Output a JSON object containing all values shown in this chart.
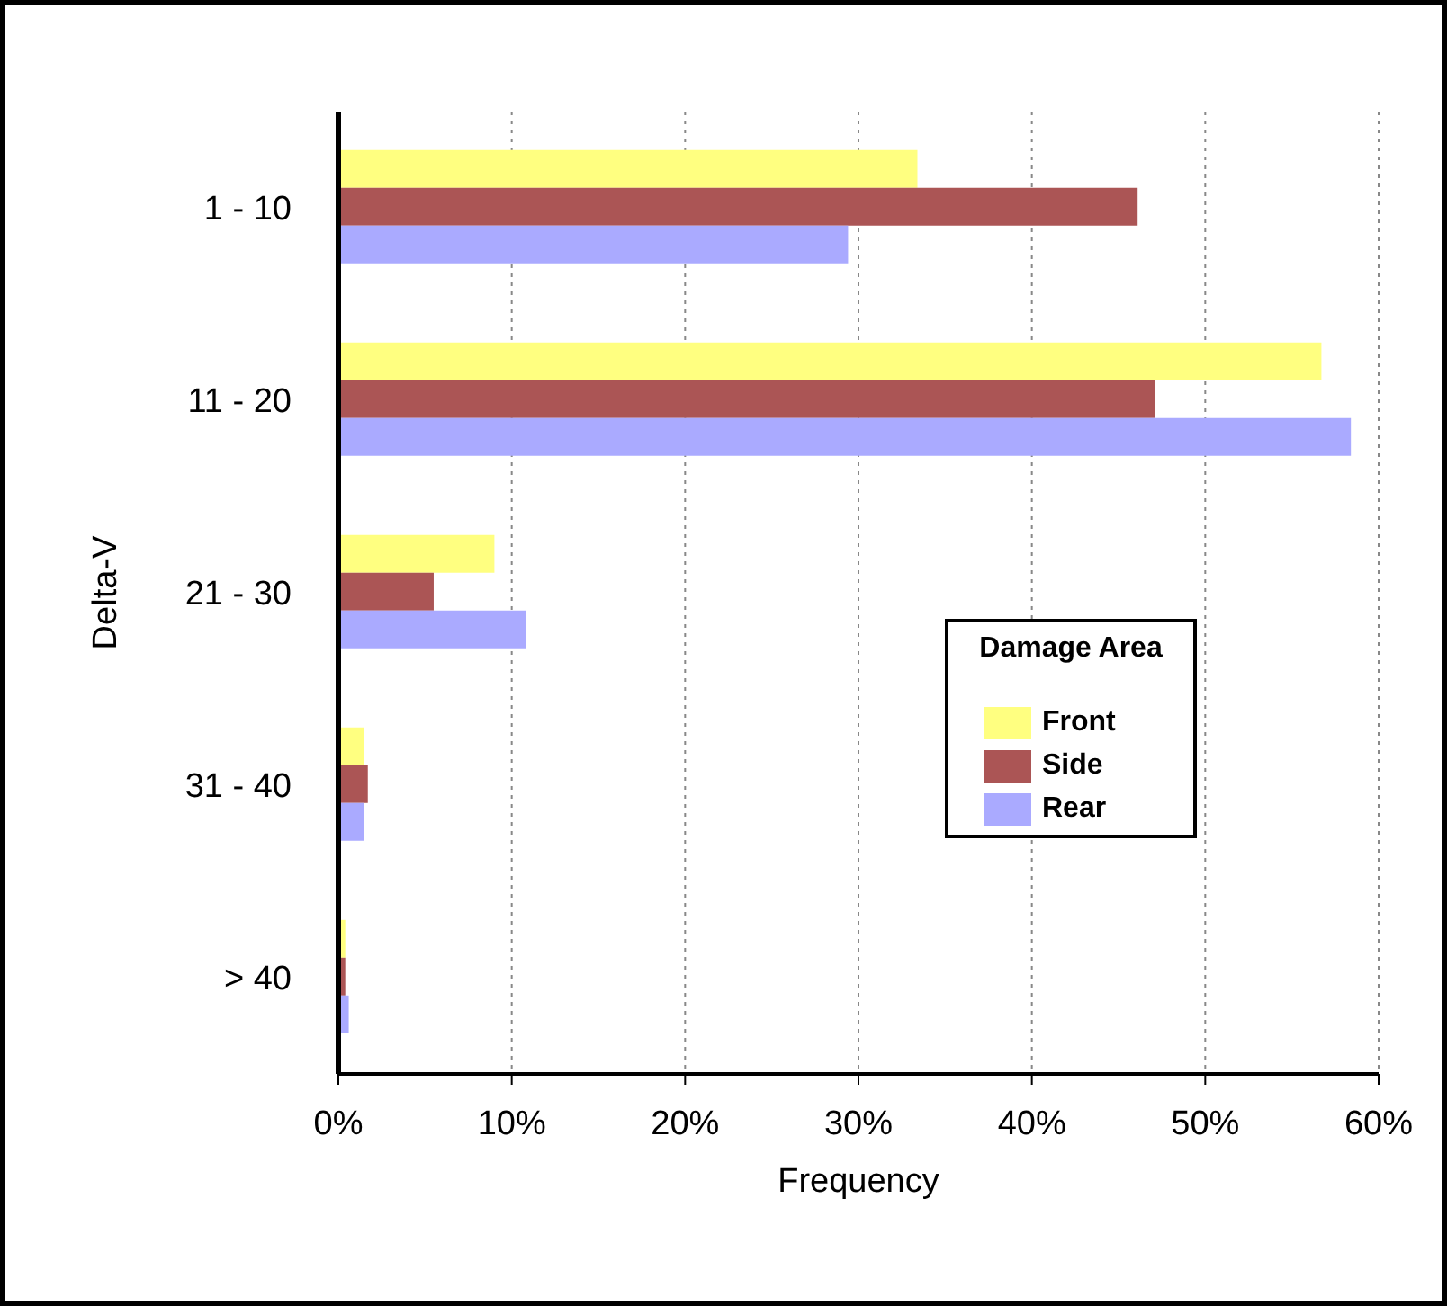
{
  "chart_data": {
    "type": "bar",
    "orientation": "horizontal",
    "xlabel": "Frequency",
    "ylabel": "Delta-V",
    "legend_title": "Damage Area",
    "legend": "right",
    "categories": [
      "1 - 10",
      "11 - 20",
      "21 - 30",
      "31 - 40",
      "> 40"
    ],
    "series": [
      {
        "name": "Front",
        "color": "#ffff80",
        "values": [
          33.4,
          56.7,
          9.0,
          1.5,
          0.4
        ]
      },
      {
        "name": "Side",
        "color": "#ab5555",
        "values": [
          46.1,
          47.1,
          5.5,
          1.7,
          0.4
        ]
      },
      {
        "name": "Rear",
        "color": "#aaaaff",
        "values": [
          29.4,
          58.4,
          10.8,
          1.5,
          0.6
        ]
      }
    ],
    "xlim": [
      0,
      60
    ],
    "xticks": [
      {
        "value": 0,
        "label": "0%"
      },
      {
        "value": 10,
        "label": "10%"
      },
      {
        "value": 20,
        "label": "20%"
      },
      {
        "value": 30,
        "label": "30%"
      },
      {
        "value": 40,
        "label": "40%"
      },
      {
        "value": 50,
        "label": "50%"
      },
      {
        "value": 60,
        "label": "60%"
      }
    ],
    "grid": "x"
  }
}
